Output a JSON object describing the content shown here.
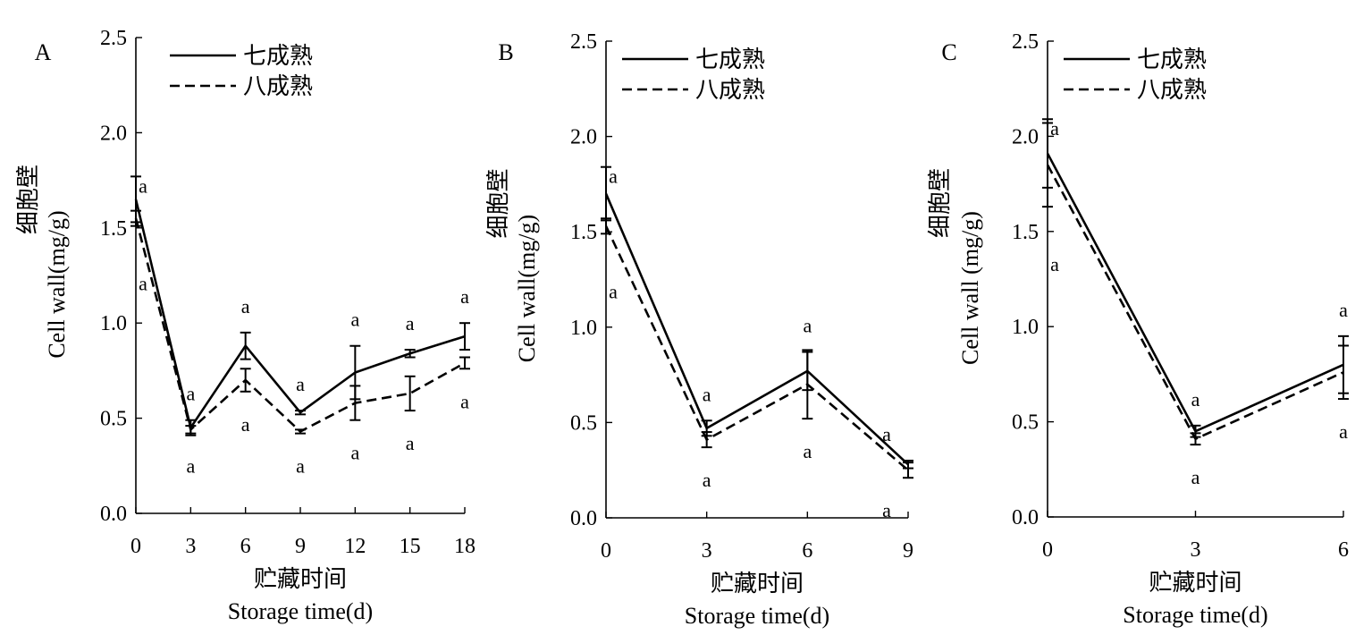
{
  "chart_data": [
    {
      "panel": "A",
      "type": "line",
      "x": [
        0,
        3,
        6,
        9,
        12,
        15,
        18
      ],
      "xlabel_cn": "贮藏时间",
      "xlabel_en": "Storage time(d)",
      "ylabel_cn": "细胞壁",
      "ylabel_en": "Cell wall(mg/g)",
      "ylim": [
        0,
        2.5
      ],
      "yticks": [
        "0.0",
        "0.5",
        "1.0",
        "1.5",
        "2.0",
        "2.5"
      ],
      "xticks": [
        "0",
        "3",
        "6",
        "9",
        "12",
        "15",
        "18"
      ],
      "legend_position": "top-left",
      "series": [
        {
          "name": "七成熟",
          "style": "solid",
          "values": [
            1.65,
            0.45,
            0.88,
            0.53,
            0.74,
            0.84,
            0.93
          ],
          "errors": [
            0.12,
            0.04,
            0.07,
            0.01,
            0.14,
            0.02,
            0.07
          ],
          "labels": [
            "a",
            "a",
            "a",
            "a",
            "a",
            "a",
            "a"
          ]
        },
        {
          "name": "八成熟",
          "style": "dashed",
          "values": [
            1.55,
            0.44,
            0.7,
            0.43,
            0.58,
            0.63,
            0.79
          ],
          "errors": [
            0.04,
            0.02,
            0.06,
            0.01,
            0.09,
            0.09,
            0.03
          ],
          "labels": [
            "a",
            "a",
            "a",
            "a",
            "a",
            "a",
            "a"
          ]
        }
      ]
    },
    {
      "panel": "B",
      "type": "line",
      "x": [
        0,
        3,
        6,
        9
      ],
      "xlabel_cn": "贮藏时间",
      "xlabel_en": "Storage time(d)",
      "ylabel_cn": "细胞壁",
      "ylabel_en": "Cell wall(mg/g)",
      "ylim": [
        0,
        2.5
      ],
      "yticks": [
        "0.0",
        "0.5",
        "1.0",
        "1.5",
        "2.0",
        "2.5"
      ],
      "xticks": [
        "0",
        "3",
        "6",
        "9"
      ],
      "legend_position": "top-left",
      "series": [
        {
          "name": "七成熟",
          "style": "solid",
          "values": [
            1.7,
            0.47,
            0.77,
            0.28
          ],
          "errors": [
            0.14,
            0.04,
            0.1,
            0.02
          ],
          "labels": [
            "a",
            "a",
            "a",
            "a"
          ]
        },
        {
          "name": "八成熟",
          "style": "dashed",
          "values": [
            1.53,
            0.41,
            0.7,
            0.25
          ],
          "errors": [
            0.04,
            0.04,
            0.18,
            0.04
          ],
          "labels": [
            "a",
            "a",
            "a",
            "a"
          ]
        }
      ]
    },
    {
      "panel": "C",
      "type": "line",
      "x": [
        0,
        3,
        6
      ],
      "xlabel_cn": "贮藏时间",
      "xlabel_en": "Storage time(d)",
      "ylabel_cn": "细胞壁",
      "ylabel_en": "Cell wall (mg/g)",
      "ylim": [
        0,
        2.5
      ],
      "yticks": [
        "0.0",
        "0.5",
        "1.0",
        "1.5",
        "2.0",
        "2.5"
      ],
      "xticks": [
        "0",
        "3",
        "6"
      ],
      "legend_position": "top-left",
      "series": [
        {
          "name": "七成熟",
          "style": "solid",
          "values": [
            1.91,
            0.45,
            0.8
          ],
          "errors": [
            0.18,
            0.03,
            0.15
          ],
          "labels": [
            "a",
            "a",
            "a"
          ]
        },
        {
          "name": "八成熟",
          "style": "dashed",
          "values": [
            1.85,
            0.41,
            0.76
          ],
          "errors": [
            0.22,
            0.03,
            0.14
          ],
          "labels": [
            "a",
            "a",
            "a"
          ]
        }
      ]
    }
  ]
}
